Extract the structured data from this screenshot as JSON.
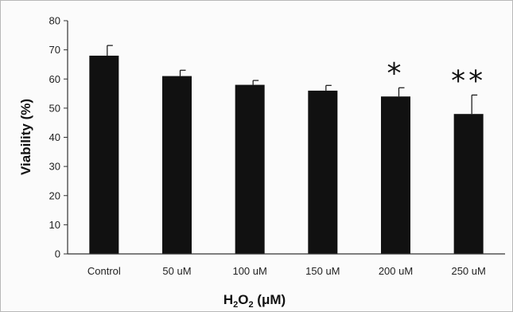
{
  "chart_data": {
    "type": "bar",
    "categories": [
      "Control",
      "50 uM",
      "100 uM",
      "150 uM",
      "200 uM",
      "250 uM"
    ],
    "values": [
      68,
      61,
      58,
      56,
      54,
      48
    ],
    "errors": [
      3.5,
      2,
      1.5,
      1.8,
      3,
      6.5
    ],
    "significance": [
      "",
      "",
      "",
      "",
      "*",
      "**"
    ],
    "ylim": [
      0,
      80
    ],
    "yticks": [
      0,
      10,
      20,
      30,
      40,
      50,
      60,
      70,
      80
    ],
    "ylabel": "Viability (%)",
    "xlabel": {
      "base": "H",
      "sub1": "2",
      "mid": "O",
      "sub2": "2",
      "unit": " (μM)"
    },
    "title": "",
    "grid": false,
    "legend": "none",
    "bar_color": "#111111"
  }
}
